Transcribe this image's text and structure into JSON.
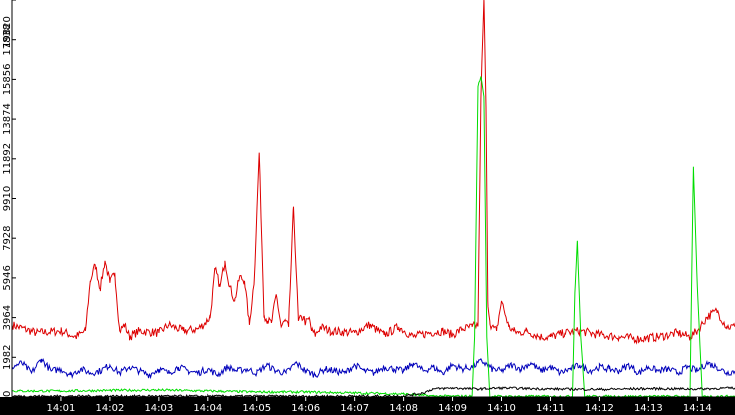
{
  "chart_data": {
    "type": "line",
    "title": "",
    "xlabel": "",
    "ylabel": "",
    "ylim": [
      0,
      19820
    ],
    "xlim_minutes": [
      0.0,
      14.77
    ],
    "y_ticks": [
      0,
      1982,
      3964,
      5946,
      7928,
      9910,
      11892,
      13874,
      15856,
      17838,
      19820
    ],
    "y_tick_labels": [
      "0",
      "1982",
      "3964",
      "5946",
      "7928",
      "9910",
      "11892",
      "13874",
      "15856",
      "17838",
      "19820"
    ],
    "x_ticks": [
      1,
      2,
      3,
      4,
      5,
      6,
      7,
      8,
      9,
      10,
      11,
      12,
      13,
      14
    ],
    "x_tick_labels": [
      "14:01",
      "14:02",
      "14:03",
      "14:04",
      "14:05",
      "14:06",
      "14:07",
      "14:08",
      "14:09",
      "14:10",
      "14:11",
      "14:12",
      "14:13",
      "14:14"
    ],
    "grid": false,
    "legend": "none",
    "series": [
      {
        "color": "#dd0000",
        "x": [
          0.0,
          0.5,
          1.0,
          1.3,
          1.5,
          1.6,
          1.7,
          1.8,
          1.9,
          2.0,
          2.1,
          2.2,
          2.3,
          2.4,
          2.6,
          3.0,
          3.2,
          3.5,
          3.8,
          3.95,
          4.05,
          4.15,
          4.25,
          4.35,
          4.45,
          4.55,
          4.65,
          4.75,
          4.85,
          4.95,
          5.05,
          5.15,
          5.22,
          5.3,
          5.4,
          5.5,
          5.58,
          5.65,
          5.75,
          5.85,
          5.95,
          6.0,
          6.08,
          6.12,
          6.2,
          6.3,
          6.5,
          7.0,
          7.3,
          7.6,
          7.9,
          8.2,
          8.5,
          8.8,
          9.0,
          9.2,
          9.4,
          9.52,
          9.58,
          9.64,
          9.68,
          9.72,
          9.76,
          9.8,
          9.9,
          10.0,
          10.15,
          10.25,
          10.35,
          10.5,
          10.8,
          11.0,
          11.3,
          11.6,
          12.0,
          12.4,
          12.8,
          13.2,
          13.6,
          13.85,
          14.0,
          14.2,
          14.4,
          14.6,
          14.77
        ],
        "y": [
          3600,
          3200,
          3300,
          3000,
          3300,
          5800,
          6600,
          5400,
          6800,
          5700,
          6200,
          3300,
          3600,
          3000,
          3300,
          3200,
          3600,
          3300,
          3400,
          3700,
          4000,
          6400,
          5500,
          6800,
          5500,
          4800,
          6000,
          5800,
          3600,
          5900,
          12200,
          4100,
          3800,
          3700,
          5100,
          3500,
          3800,
          3500,
          9500,
          3800,
          4000,
          3700,
          3900,
          3300,
          3100,
          3500,
          3300,
          3200,
          3600,
          3100,
          3500,
          3000,
          3200,
          3300,
          3100,
          3400,
          3500,
          3600,
          14900,
          19820,
          15000,
          4800,
          3800,
          3500,
          3300,
          4800,
          3500,
          3300,
          3200,
          3300,
          3000,
          3000,
          3200,
          3300,
          3100,
          3000,
          2900,
          3000,
          3200,
          3000,
          3300,
          4000,
          4300,
          3500,
          3500
        ],
        "noise": 220
      },
      {
        "color": "#0000bb",
        "x": [
          0.0,
          0.2,
          0.4,
          0.6,
          0.8,
          1.0,
          1.2,
          1.4,
          1.6,
          1.8,
          2.0,
          2.2,
          2.4,
          2.6,
          2.8,
          3.0,
          3.2,
          3.4,
          3.6,
          3.8,
          4.0,
          4.2,
          4.4,
          4.6,
          4.8,
          5.0,
          5.2,
          5.4,
          5.6,
          5.8,
          6.0,
          6.2,
          6.4,
          6.6,
          6.8,
          7.0,
          7.2,
          7.4,
          7.6,
          7.8,
          8.0,
          8.2,
          8.4,
          8.6,
          8.8,
          9.0,
          9.2,
          9.4,
          9.6,
          9.8,
          10.0,
          10.2,
          10.4,
          10.6,
          10.8,
          11.0,
          11.2,
          11.4,
          11.6,
          11.8,
          12.0,
          12.2,
          12.4,
          12.6,
          12.8,
          13.0,
          13.2,
          13.4,
          13.6,
          13.8,
          14.0,
          14.2,
          14.4,
          14.6,
          14.77
        ],
        "y": [
          1500,
          1700,
          1200,
          1900,
          1300,
          1400,
          1100,
          1400,
          1200,
          1300,
          1600,
          1200,
          1500,
          1300,
          1100,
          1400,
          1200,
          1500,
          1300,
          1200,
          1400,
          1100,
          1500,
          1300,
          1400,
          1200,
          1600,
          1300,
          1200,
          1700,
          1300,
          1100,
          1400,
          1300,
          1200,
          1600,
          1300,
          1200,
          1500,
          1400,
          1300,
          1700,
          1300,
          1500,
          1200,
          1600,
          1400,
          1500,
          1800,
          1400,
          1300,
          1600,
          1400,
          1700,
          1300,
          1500,
          1200,
          1400,
          1600,
          1300,
          1500,
          1400,
          1300,
          1600,
          1200,
          1500,
          1300,
          1400,
          1200,
          1500,
          1300,
          1700,
          1500,
          1200,
          1300
        ],
        "noise": 170
      },
      {
        "color": "#00dd00",
        "x": [
          0.0,
          1.0,
          2.0,
          3.0,
          4.0,
          5.0,
          6.0,
          7.0,
          7.5,
          8.0,
          8.4,
          8.6,
          9.0,
          9.4,
          9.45,
          9.52,
          9.58,
          9.64,
          9.7,
          9.76,
          9.82,
          10.0,
          11.0,
          11.45,
          11.5,
          11.55,
          11.62,
          11.7,
          12.0,
          13.0,
          13.85,
          13.92,
          14.0,
          14.1,
          14.2,
          14.77
        ],
        "y": [
          300,
          300,
          330,
          350,
          300,
          250,
          250,
          200,
          180,
          150,
          80,
          50,
          40,
          40,
          3000,
          15500,
          16000,
          15000,
          3000,
          40,
          30,
          30,
          30,
          30,
          5200,
          7800,
          3000,
          30,
          30,
          30,
          30,
          11500,
          5500,
          30,
          30,
          30
        ],
        "noise": 60
      },
      {
        "color": "#000000",
        "x": [
          0.0,
          1.0,
          2.0,
          3.0,
          4.0,
          5.0,
          6.0,
          7.0,
          8.0,
          8.4,
          8.6,
          9.0,
          9.5,
          10.0,
          11.0,
          12.0,
          13.0,
          14.0,
          14.77
        ],
        "y": [
          40,
          40,
          40,
          40,
          40,
          40,
          40,
          40,
          50,
          200,
          400,
          450,
          400,
          450,
          400,
          380,
          420,
          400,
          450
        ],
        "noise": 60
      }
    ]
  }
}
